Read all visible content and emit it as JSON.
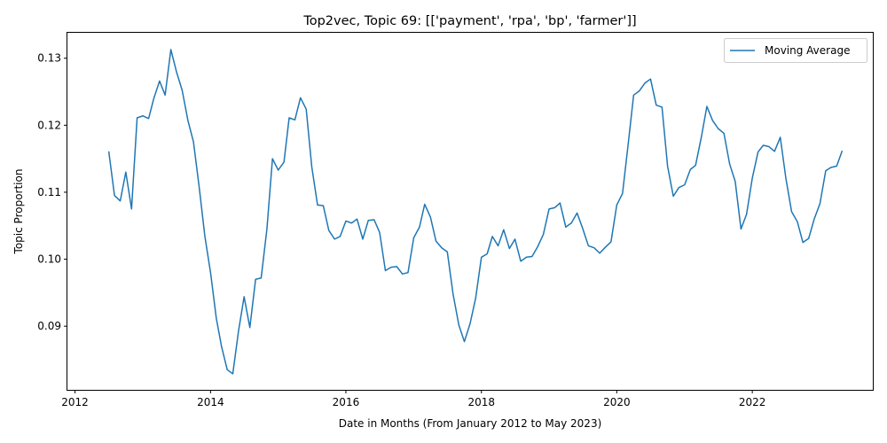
{
  "chart_data": {
    "type": "line",
    "title": "Top2vec, Topic 69: [['payment', 'rpa', 'bp', 'farmer']]",
    "xlabel": "Date in Months (From January 2012 to May 2023)",
    "ylabel": "Topic Proportion",
    "xlim": [
      "2011-11-21",
      "2023-10-13"
    ],
    "ylim": [
      0.0805,
      0.1338
    ],
    "x_ticks": [
      {
        "value": "2012-01-01",
        "label": "2012"
      },
      {
        "value": "2014-01-01",
        "label": "2014"
      },
      {
        "value": "2016-01-01",
        "label": "2016"
      },
      {
        "value": "2018-01-01",
        "label": "2018"
      },
      {
        "value": "2020-01-01",
        "label": "2020"
      },
      {
        "value": "2022-01-01",
        "label": "2022"
      }
    ],
    "y_ticks": [
      {
        "value": 0.09,
        "label": "0.09"
      },
      {
        "value": 0.1,
        "label": "0.10"
      },
      {
        "value": 0.11,
        "label": "0.11"
      },
      {
        "value": 0.12,
        "label": "0.12"
      },
      {
        "value": 0.13,
        "label": "0.13"
      }
    ],
    "grid": false,
    "legend_position": "top-right",
    "color": "#1f77b4",
    "series": [
      {
        "name": "Moving Average",
        "x": [
          "2012-07",
          "2012-08",
          "2012-09",
          "2012-10",
          "2012-11",
          "2012-12",
          "2013-01",
          "2013-02",
          "2013-03",
          "2013-04",
          "2013-05",
          "2013-06",
          "2013-07",
          "2013-08",
          "2013-09",
          "2013-10",
          "2013-11",
          "2013-12",
          "2014-01",
          "2014-02",
          "2014-03",
          "2014-04",
          "2014-05",
          "2014-06",
          "2014-07",
          "2014-08",
          "2014-09",
          "2014-10",
          "2014-11",
          "2014-12",
          "2015-01",
          "2015-02",
          "2015-03",
          "2015-04",
          "2015-05",
          "2015-06",
          "2015-07",
          "2015-08",
          "2015-09",
          "2015-10",
          "2015-11",
          "2015-12",
          "2016-01",
          "2016-02",
          "2016-03",
          "2016-04",
          "2016-05",
          "2016-06",
          "2016-07",
          "2016-08",
          "2016-09",
          "2016-10",
          "2016-11",
          "2016-12",
          "2017-01",
          "2017-02",
          "2017-03",
          "2017-04",
          "2017-05",
          "2017-06",
          "2017-07",
          "2017-08",
          "2017-09",
          "2017-10",
          "2017-11",
          "2017-12",
          "2018-01",
          "2018-02",
          "2018-03",
          "2018-04",
          "2018-05",
          "2018-06",
          "2018-07",
          "2018-08",
          "2018-09",
          "2018-10",
          "2018-11",
          "2018-12",
          "2019-01",
          "2019-02",
          "2019-03",
          "2019-04",
          "2019-05",
          "2019-06",
          "2019-07",
          "2019-08",
          "2019-09",
          "2019-10",
          "2019-11",
          "2019-12",
          "2020-01",
          "2020-02",
          "2020-03",
          "2020-04",
          "2020-05",
          "2020-06",
          "2020-07",
          "2020-08",
          "2020-09",
          "2020-10",
          "2020-11",
          "2020-12",
          "2021-01",
          "2021-02",
          "2021-03",
          "2021-04",
          "2021-05",
          "2021-06",
          "2021-07",
          "2021-08",
          "2021-09",
          "2021-10",
          "2021-11",
          "2021-12",
          "2022-01",
          "2022-02",
          "2022-03",
          "2022-04",
          "2022-05",
          "2022-06",
          "2022-07",
          "2022-08",
          "2022-09",
          "2022-10",
          "2022-11",
          "2022-12",
          "2023-01",
          "2023-02",
          "2023-03",
          "2023-04",
          "2023-05"
        ],
        "values": [
          0.1161,
          0.1095,
          0.1087,
          0.113,
          0.1075,
          0.1211,
          0.1214,
          0.121,
          0.124,
          0.1266,
          0.1245,
          0.1313,
          0.128,
          0.1252,
          0.1207,
          0.1175,
          0.1107,
          0.1035,
          0.098,
          0.0912,
          0.087,
          0.0835,
          0.0829,
          0.0893,
          0.0944,
          0.0898,
          0.097,
          0.0972,
          0.1045,
          0.115,
          0.1133,
          0.1145,
          0.1211,
          0.1208,
          0.1241,
          0.1224,
          0.1138,
          0.1081,
          0.108,
          0.1043,
          0.103,
          0.1034,
          0.1057,
          0.1054,
          0.106,
          0.103,
          0.1058,
          0.1059,
          0.104,
          0.0983,
          0.0988,
          0.0989,
          0.0978,
          0.098,
          0.1032,
          0.1048,
          0.1082,
          0.1063,
          0.1027,
          0.1017,
          0.1011,
          0.0948,
          0.0902,
          0.0877,
          0.0904,
          0.0942,
          0.1003,
          0.1008,
          0.1034,
          0.102,
          0.1044,
          0.1016,
          0.103,
          0.0997,
          0.1003,
          0.1004,
          0.1019,
          0.1037,
          0.1075,
          0.1077,
          0.1084,
          0.1048,
          0.1054,
          0.1069,
          0.1046,
          0.102,
          0.1017,
          0.1009,
          0.1018,
          0.1026,
          0.1081,
          0.1098,
          0.1168,
          0.1245,
          0.1251,
          0.1263,
          0.1269,
          0.123,
          0.1227,
          0.1139,
          0.1094,
          0.1107,
          0.1111,
          0.1134,
          0.114,
          0.1182,
          0.1228,
          0.1207,
          0.1195,
          0.1188,
          0.1142,
          0.1116,
          0.1045,
          0.1067,
          0.1121,
          0.116,
          0.117,
          0.1168,
          0.1161,
          0.1182,
          0.1121,
          0.1071,
          0.1056,
          0.1025,
          0.1031,
          0.106,
          0.1083,
          0.1132,
          0.1137,
          0.1139,
          0.1162
        ]
      }
    ]
  }
}
